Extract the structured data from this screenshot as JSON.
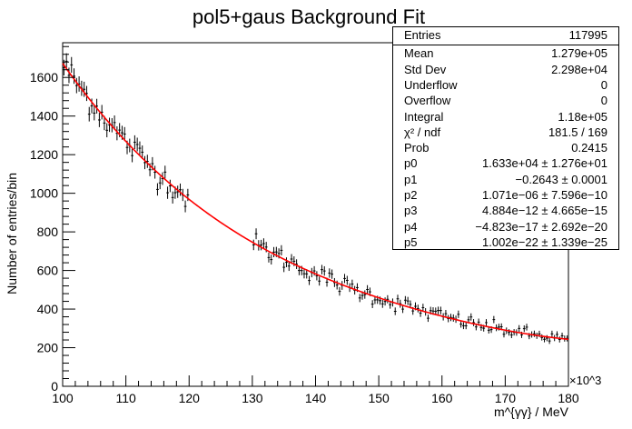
{
  "chart_data": {
    "type": "scatter",
    "title": "pol5+gaus Background Fit",
    "xlabel": "m^{γγ} / MeV",
    "ylabel": "Number of entries/bin",
    "x_exponent_label": "×10^3",
    "xlim": [
      100000,
      180000
    ],
    "ylim": [
      0,
      1780
    ],
    "x_ticks": [
      "100",
      "110",
      "120",
      "130",
      "140",
      "150",
      "160",
      "170",
      "180"
    ],
    "x_tick_values": [
      100000,
      110000,
      120000,
      130000,
      140000,
      150000,
      160000,
      170000,
      180000
    ],
    "y_ticks": [
      "0",
      "200",
      "400",
      "600",
      "800",
      "1000",
      "1200",
      "1400",
      "1600"
    ],
    "y_tick_values": [
      0,
      200,
      400,
      600,
      800,
      1000,
      1200,
      1400,
      1600
    ],
    "grid": false,
    "blinded_region": [
      120000,
      130000
    ],
    "fit_coefficients": [
      16330,
      -0.2643,
      1.071e-06,
      4.884e-12,
      -4.823e-17,
      1.002e-22
    ],
    "bin_width": 400,
    "data_colour": "#000000",
    "fit_colour": "#ff0000"
  },
  "stats": [
    {
      "label": "Entries",
      "value": "117995"
    },
    {
      "label": "Mean",
      "value": "1.279e+05"
    },
    {
      "label": "Std Dev",
      "value": "2.298e+04"
    },
    {
      "label": "Underflow",
      "value": "0"
    },
    {
      "label": "Overflow",
      "value": "0"
    },
    {
      "label": "Integral",
      "value": "1.18e+05"
    },
    {
      "label": "χ² / ndf",
      "value": "181.5 / 169"
    },
    {
      "label": "Prob",
      "value": "0.2415"
    },
    {
      "label": "p0",
      "value": "1.633e+04 ± 1.276e+01"
    },
    {
      "label": "p1",
      "value": "−0.2643 ± 0.0001"
    },
    {
      "label": "p2",
      "value": "1.071e−06 ± 7.596e−10"
    },
    {
      "label": "p3",
      "value": "4.884e−12 ± 4.665e−15"
    },
    {
      "label": "p4",
      "value": "−4.823e−17 ± 2.692e−20"
    },
    {
      "label": "p5",
      "value": "1.002e−22 ± 1.339e−25"
    }
  ]
}
